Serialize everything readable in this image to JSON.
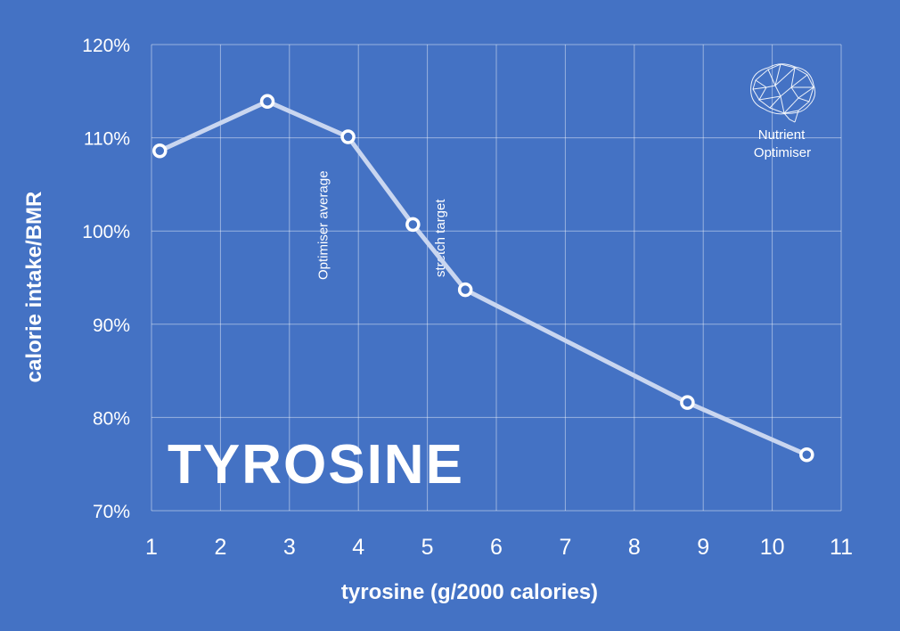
{
  "chart_data": {
    "type": "line",
    "title": "TYROSINE",
    "xlabel": "tyrosine (g/2000 calories)",
    "ylabel": "calorie intake/BMR",
    "xlim": [
      1,
      11
    ],
    "ylim": [
      70,
      120
    ],
    "x_ticks": [
      "1",
      "2",
      "3",
      "4",
      "5",
      "6",
      "7",
      "8",
      "9",
      "10",
      "11"
    ],
    "y_ticks": [
      "70%",
      "80%",
      "90%",
      "100%",
      "110%",
      "120%"
    ],
    "grid": true,
    "series": [
      {
        "x": [
          1.12,
          2.68,
          3.85,
          4.79,
          5.55,
          8.77,
          10.5
        ],
        "y": [
          108.6,
          113.9,
          110.1,
          100.7,
          93.7,
          81.6,
          76.0
        ],
        "color": "#c9d6f0",
        "marker": "open-circle"
      }
    ],
    "annotations": [
      {
        "text": "Optimiser average",
        "x": 3.85
      },
      {
        "text": "stretch target",
        "x": 5.55
      }
    ]
  },
  "logo": {
    "line1": "Nutrient",
    "line2": "Optimiser",
    "icon": "brain-icon"
  }
}
